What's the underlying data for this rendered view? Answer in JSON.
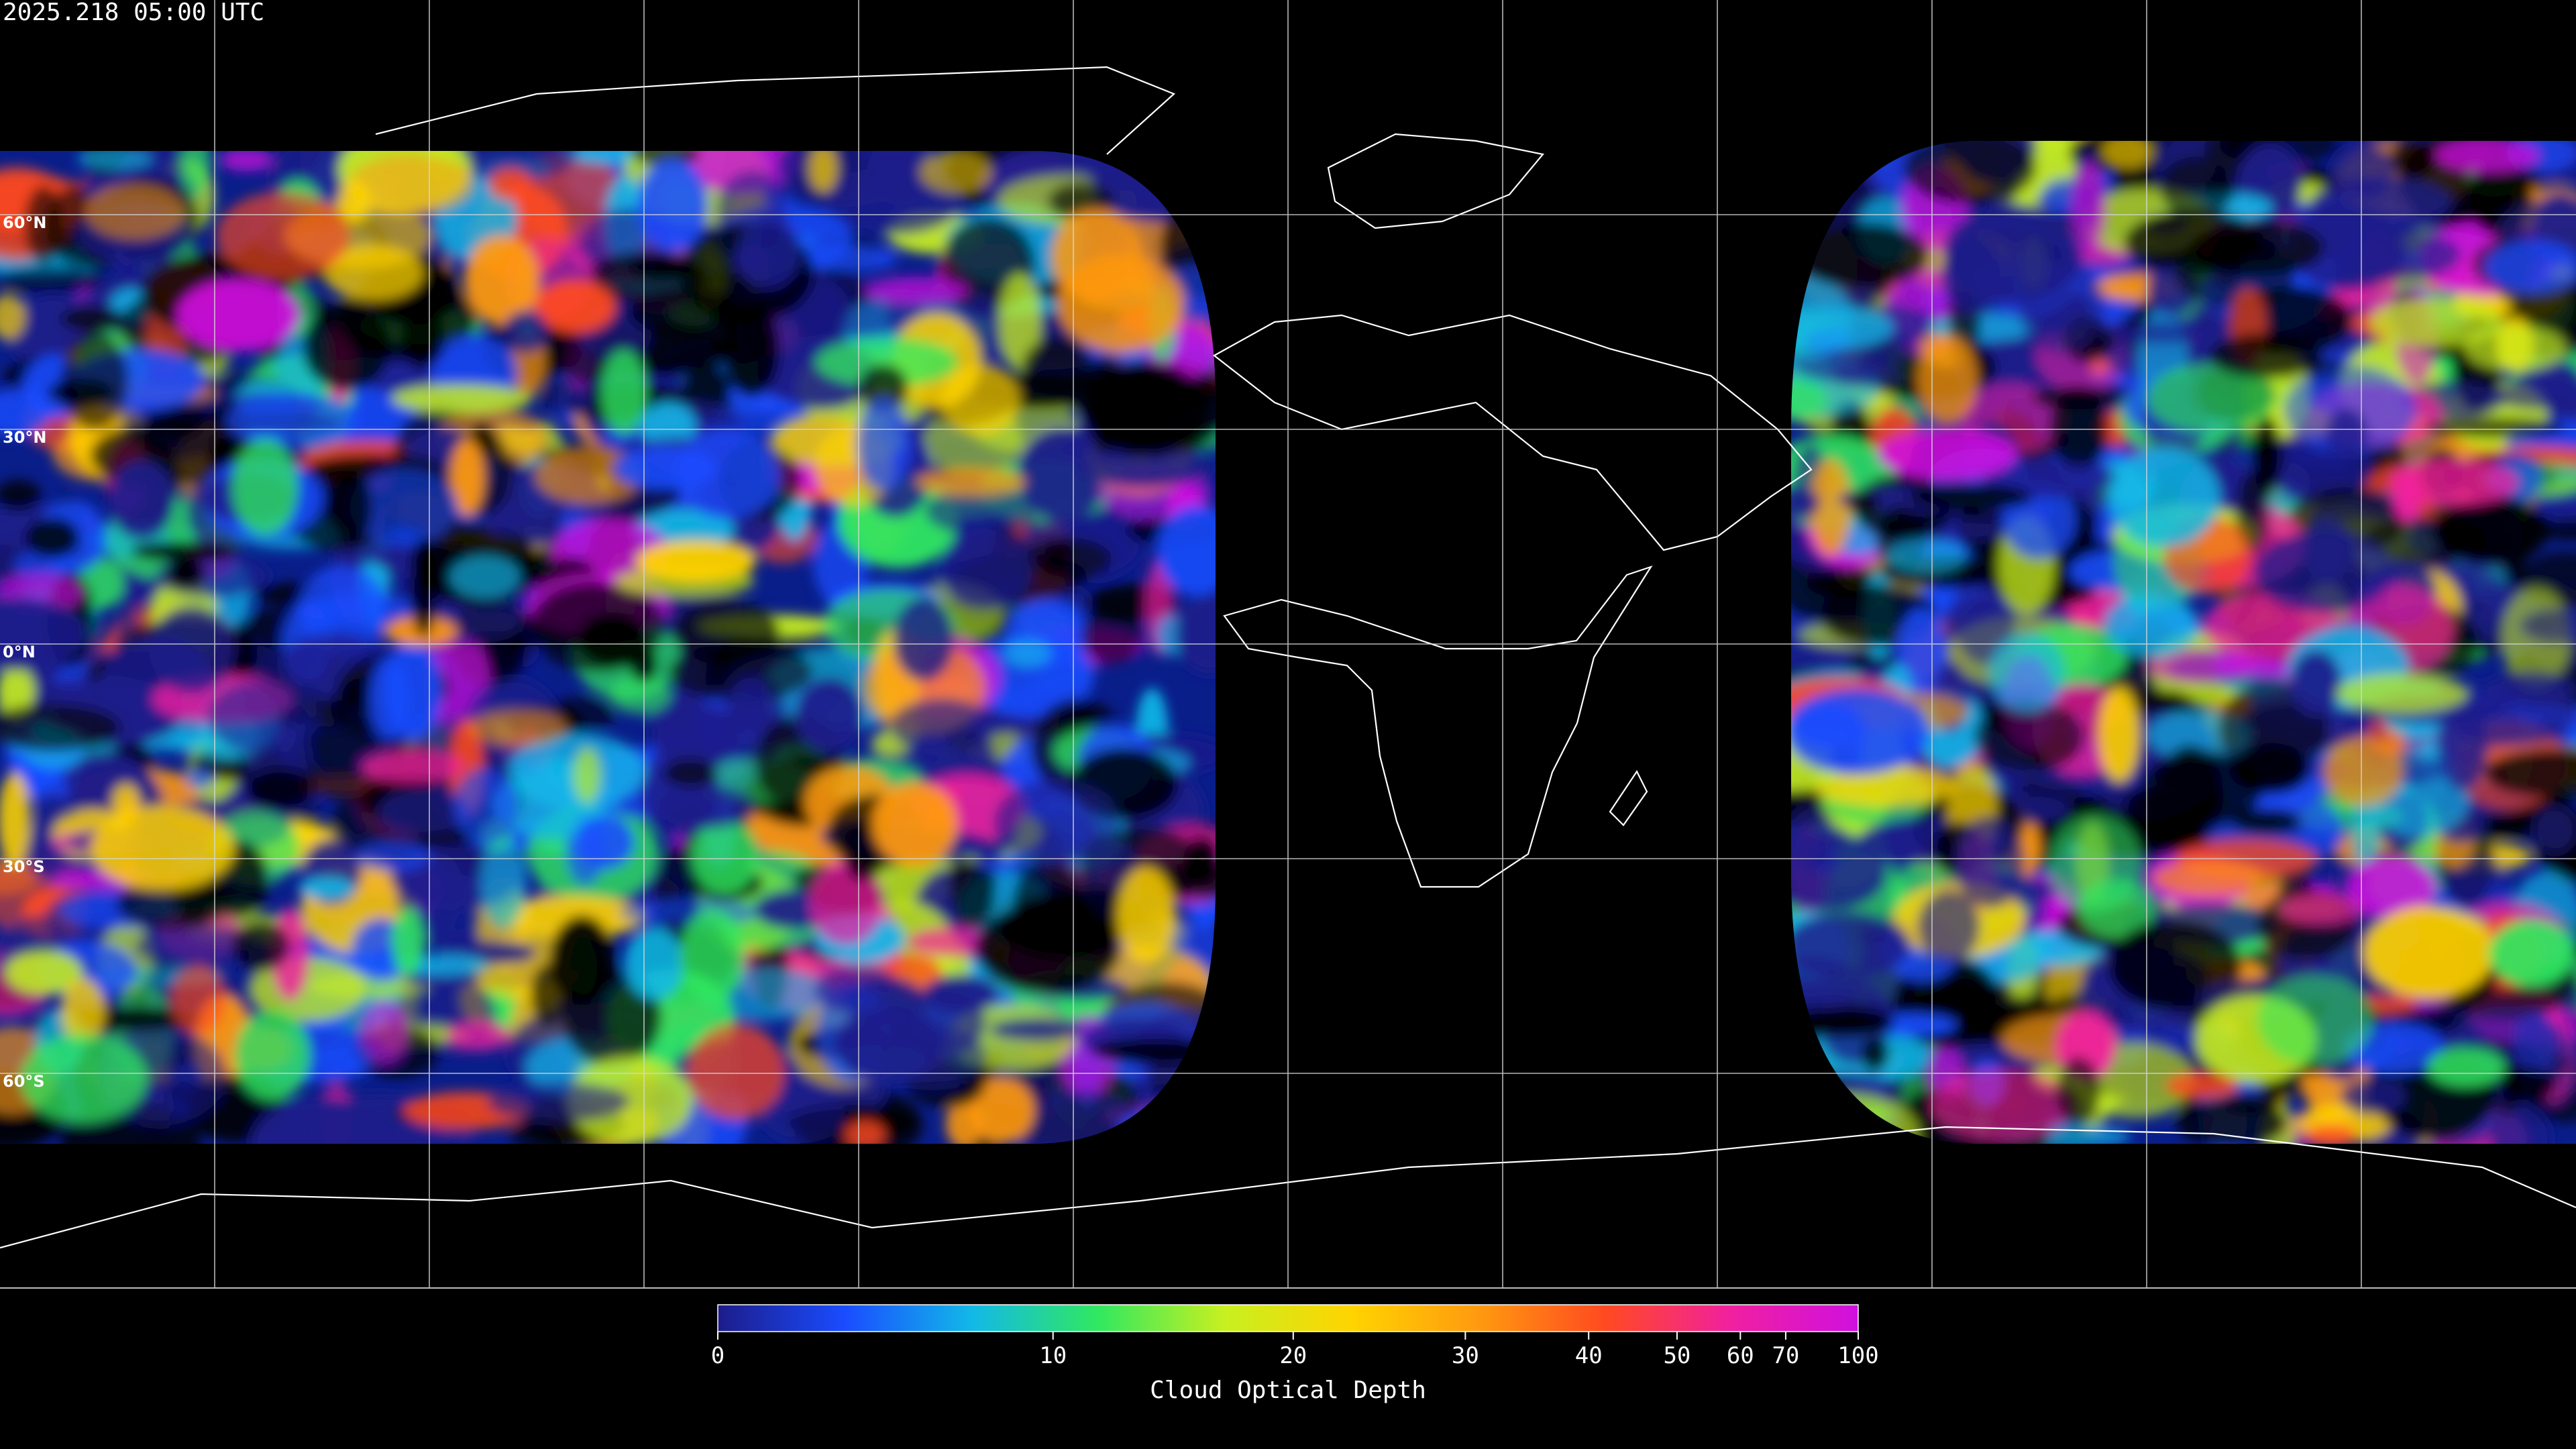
{
  "timestamp": "2025.218 05:00 UTC",
  "latitude_labels": [
    "60°N",
    "30°N",
    "0°N",
    "30°S",
    "60°S"
  ],
  "chart_data": {
    "type": "colorbar",
    "title": "Cloud Optical Depth",
    "xlim": [
      0,
      100
    ],
    "xticks": [
      0,
      10,
      20,
      30,
      40,
      50,
      60,
      70,
      100
    ],
    "colors": [
      "#1c1c8a",
      "#1a4cff",
      "#12b8e8",
      "#30e860",
      "#c8f020",
      "#ffd400",
      "#ff9a10",
      "#ff4a20",
      "#f020a0",
      "#d010e0"
    ]
  }
}
